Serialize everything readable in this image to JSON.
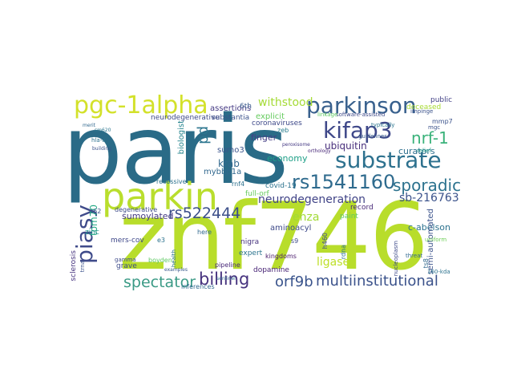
{
  "cloud": {
    "words": [
      {
        "text": "paris",
        "color": "#2a6b87"
      },
      {
        "text": "znf746",
        "color": "#b8dd2b"
      },
      {
        "text": "parkin",
        "color": "#b9de2d"
      },
      {
        "text": "pgc-1alpha",
        "color": "#d3e12a"
      },
      {
        "text": "parkinson",
        "color": "#38608d"
      },
      {
        "text": "substrate",
        "color": "#2d718e"
      },
      {
        "text": "kifap3",
        "color": "#3f4889"
      },
      {
        "text": "rs1541160",
        "color": "#2f6b8e"
      },
      {
        "text": "piasy",
        "color": "#3f4b8a"
      },
      {
        "text": "spectator",
        "color": "#3a9a85"
      },
      {
        "text": "billing",
        "color": "#46327e"
      },
      {
        "text": "multiinstitutional",
        "color": "#3b528b"
      },
      {
        "text": "orf9b",
        "color": "#3a548c"
      },
      {
        "text": "rs522444",
        "color": "#3c4f8a"
      },
      {
        "text": "sporadic",
        "color": "#2c728e"
      },
      {
        "text": "nrf-1",
        "color": "#3ab27a"
      },
      {
        "text": "sb-216763",
        "color": "#3b528b"
      },
      {
        "text": "neurodegeneration",
        "color": "#414487"
      },
      {
        "text": "withstood",
        "color": "#a5db36"
      },
      {
        "text": "ubiquitin",
        "color": "#472d7b"
      },
      {
        "text": "krab",
        "color": "#31688e"
      },
      {
        "text": "pd",
        "color": "#2b758e"
      },
      {
        "text": "sumoylated",
        "color": "#443a83"
      },
      {
        "text": "tom70",
        "color": "#23a884"
      },
      {
        "text": "enza",
        "color": "#a2da37"
      },
      {
        "text": "ligase",
        "color": "#bddf26"
      },
      {
        "text": "c-abelson",
        "color": "#2c728e"
      },
      {
        "text": "semi-automated",
        "color": "#3b528b"
      },
      {
        "text": "curators",
        "color": "#2e6f8e"
      },
      {
        "text": "mybbp1a",
        "color": "#31688e"
      },
      {
        "text": "sumo3",
        "color": "#3a548c"
      },
      {
        "text": "finger",
        "color": "#433e85"
      },
      {
        "text": "economy",
        "color": "#1fa088"
      },
      {
        "text": "substantia",
        "color": "#3b528b"
      },
      {
        "text": "neurodegenerative",
        "color": "#3e4a89"
      },
      {
        "text": "biologist",
        "color": "#25848e"
      },
      {
        "text": "assertions",
        "color": "#443983"
      },
      {
        "text": "6th",
        "color": "#38598c"
      },
      {
        "text": "explicit",
        "color": "#65cb5e"
      },
      {
        "text": "coronaviruses",
        "color": "#3e4989"
      },
      {
        "text": "zeb",
        "color": "#287d8e"
      },
      {
        "text": "covid-19",
        "color": "#2c728e"
      },
      {
        "text": "full-orf",
        "color": "#65cb5e"
      },
      {
        "text": "rnf4",
        "color": "#2d718e"
      },
      {
        "text": "degenerative",
        "color": "#3e4c8a"
      },
      {
        "text": "dopamine",
        "color": "#482475"
      },
      {
        "text": "nigra",
        "color": "#46327e"
      },
      {
        "text": "expert",
        "color": "#2b748e"
      },
      {
        "text": "aminoacyl",
        "color": "#3e4a89"
      },
      {
        "text": "record",
        "color": "#482878"
      },
      {
        "text": "paint",
        "color": "#5ec962"
      },
      {
        "text": "public",
        "color": "#424086"
      },
      {
        "text": "deceased",
        "color": "#a8db34"
      },
      {
        "text": "mmp7",
        "color": "#3b528b"
      },
      {
        "text": "sclerosis",
        "color": "#46337f"
      },
      {
        "text": "mers-cov",
        "color": "#3f4889"
      },
      {
        "text": "grave",
        "color": "#3e4c8a"
      },
      {
        "text": "zinc",
        "color": "#21918c"
      },
      {
        "text": "e3",
        "color": "#2c728e"
      },
      {
        "text": "s62",
        "color": "#3b528b"
      },
      {
        "text": "gamma",
        "color": "#3e4a89"
      },
      {
        "text": "boyden",
        "color": "#5ec962"
      },
      {
        "text": "pipeline",
        "color": "#482878"
      },
      {
        "text": "kingdoms",
        "color": "#48186a"
      },
      {
        "text": "recessive",
        "color": "#2c728e"
      },
      {
        "text": "h460",
        "color": "#3e4989"
      },
      {
        "text": "ts8",
        "color": "#31688e"
      },
      {
        "text": "threat",
        "color": "#31688e"
      },
      {
        "text": "160-kda",
        "color": "#2c728e"
      },
      {
        "text": "uniform",
        "color": "#6ece58"
      },
      {
        "text": "typically",
        "color": "#2b758e"
      },
      {
        "text": "guidelines",
        "color": "#38598c"
      },
      {
        "text": "software-assisted",
        "color": "#3e4a89"
      },
      {
        "text": "linkage",
        "color": "#5ec962"
      },
      {
        "text": "merit",
        "color": "#31688e"
      },
      {
        "text": "sm620",
        "color": "#2b758e"
      },
      {
        "text": "hla-a",
        "color": "#2c728e"
      },
      {
        "text": "peroxisome",
        "color": "#443983"
      },
      {
        "text": "mgc",
        "color": "#3b528b"
      },
      {
        "text": "s9",
        "color": "#3e4a89"
      },
      {
        "text": "here",
        "color": "#31688e"
      },
      {
        "text": "impinge",
        "color": "#3b528b"
      },
      {
        "text": "relief",
        "color": "#1fa088"
      },
      {
        "text": "rdna",
        "color": "#2c728e"
      },
      {
        "text": "nucleoplasm",
        "color": "#3e4a89"
      },
      {
        "text": "building",
        "color": "#3b528b"
      },
      {
        "text": "examples",
        "color": "#38598c"
      },
      {
        "text": "health",
        "color": "#2c728e"
      },
      {
        "text": "inferences",
        "color": "#31688e"
      },
      {
        "text": "trna",
        "color": "#3b528b"
      },
      {
        "text": "sentinel",
        "color": "#31688e"
      },
      {
        "text": "orthology",
        "color": "#482878"
      }
    ]
  }
}
